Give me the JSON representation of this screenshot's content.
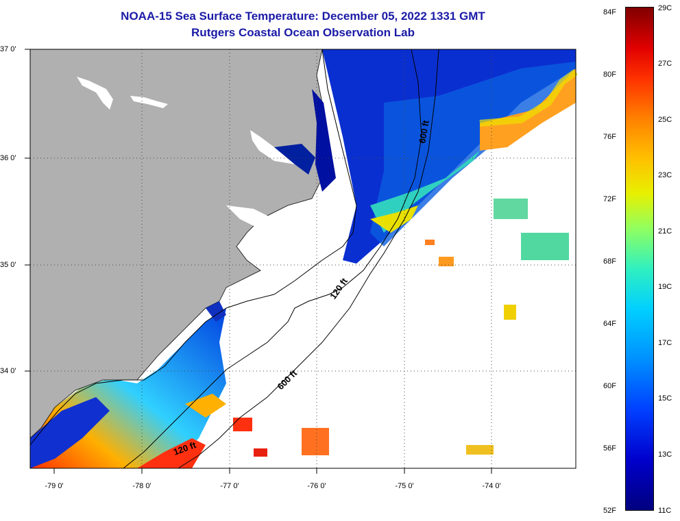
{
  "title_line1": "NOAA-15 Sea Surface Temperature:  December 05, 2022 1331 GMT",
  "title_line2": "Rutgers Coastal Ocean Observation Lab",
  "map": {
    "lat_labels": [
      "37 0'",
      "36 0'",
      "35 0'",
      "34 0'"
    ],
    "lon_labels": [
      "-79 0'",
      "-78 0'",
      "-77 0'",
      "-76 0'",
      "-75 0'",
      "-74 0'"
    ],
    "isobath_labels": [
      "600 ft",
      "120 ft",
      "600 ft",
      "120 ft"
    ],
    "land_color": "#b0b0b0",
    "no_data_color": "#ffffff"
  },
  "colorbar": {
    "fahrenheit_labels": [
      "84F",
      "80F",
      "76F",
      "72F",
      "68F",
      "64F",
      "60F",
      "56F",
      "52F"
    ],
    "celsius_labels": [
      "29C",
      "27C",
      "25C",
      "23C",
      "21C",
      "19C",
      "17C",
      "15C",
      "13C",
      "11C"
    ]
  }
}
